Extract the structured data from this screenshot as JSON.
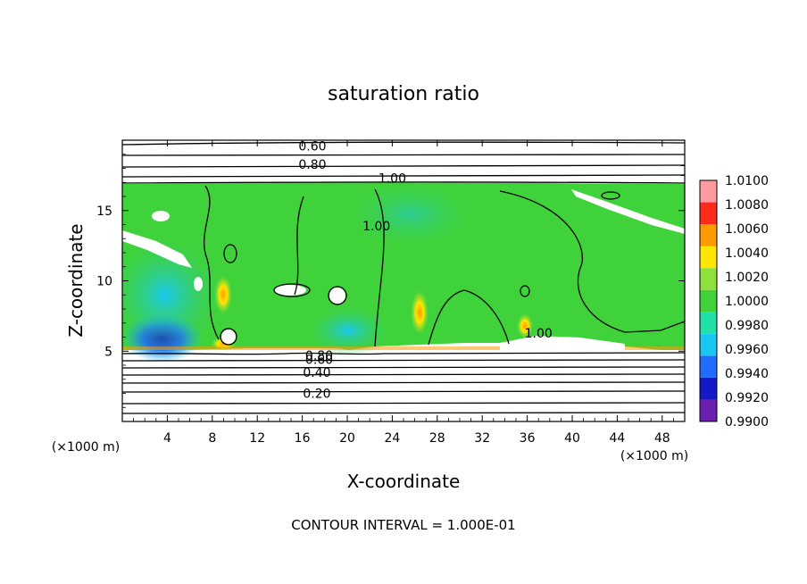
{
  "chart_data": {
    "type": "heatmap",
    "title": "saturation ratio",
    "xlabel": "X-coordinate",
    "ylabel": "Z-coordinate",
    "x_unit_label": "(×1000 m)",
    "y_unit_label": "(×1000 m)",
    "xlim": [
      0,
      50
    ],
    "ylim": [
      0,
      20
    ],
    "x_ticks": [
      4,
      8,
      12,
      16,
      20,
      24,
      28,
      32,
      36,
      40,
      44,
      48
    ],
    "y_ticks": [
      5,
      10,
      15
    ],
    "colorbar": {
      "levels": [
        0.99,
        0.992,
        0.994,
        0.996,
        0.998,
        1.0,
        1.002,
        1.004,
        1.006,
        1.008,
        1.01
      ],
      "labels": [
        "0.9900",
        "0.9920",
        "0.9940",
        "0.9960",
        "0.9980",
        "1.0000",
        "1.0020",
        "1.0040",
        "1.0060",
        "1.0080",
        "1.0100"
      ],
      "colors": [
        "#6a1fb0",
        "#1418c8",
        "#1f6cff",
        "#19c8f0",
        "#1ee0a8",
        "#3fd23a",
        "#8ee03a",
        "#ffe600",
        "#ff9a00",
        "#ff2a1a",
        "#ff9aa0"
      ]
    },
    "contour_labels": [
      {
        "text": "0.60",
        "x": 16.9,
        "y": 19.6
      },
      {
        "text": "0.80",
        "x": 16.9,
        "y": 18.3
      },
      {
        "text": "1.00",
        "x": 24.0,
        "y": 17.3
      },
      {
        "text": "1.00",
        "x": 22.6,
        "y": 13.9
      },
      {
        "text": "1.00",
        "x": 37.0,
        "y": 6.3
      },
      {
        "text": "0.80",
        "x": 17.5,
        "y": 4.7
      },
      {
        "text": "0.60",
        "x": 17.5,
        "y": 4.4
      },
      {
        "text": "0.40",
        "x": 17.3,
        "y": 3.5
      },
      {
        "text": "0.20",
        "x": 17.3,
        "y": 2.0
      }
    ],
    "annotation": "CONTOUR INTERVAL = 1.000E-01"
  }
}
